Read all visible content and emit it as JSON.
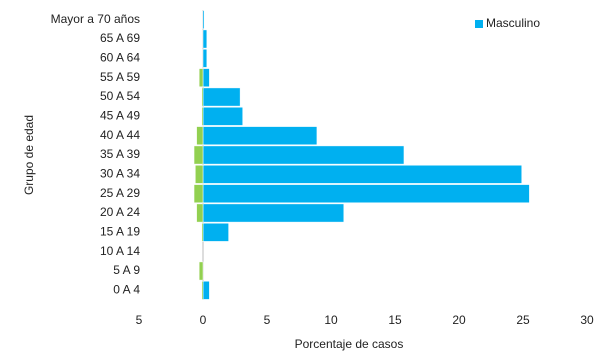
{
  "chart_data": {
    "type": "bar",
    "orientation": "horizontal",
    "ylabel": "Grupo de edad",
    "xlabel": "Porcentaje de casos",
    "categories": [
      "Mayor a 70 años",
      "65 A 69",
      "60 A 64",
      "55 A 59",
      "50 A 54",
      "45 A 49",
      "40 A 44",
      "35 A 39",
      "30 A 34",
      "25 A 29",
      "20 A 24",
      "15 A 19",
      "10 A 14",
      "5 A 9",
      "0 A 4"
    ],
    "series": [
      {
        "name": "Masculino",
        "color": "#00b0f0",
        "values": [
          0.1,
          0.3,
          0.3,
          0.5,
          2.9,
          3.1,
          8.9,
          15.7,
          24.9,
          25.5,
          11,
          2,
          0,
          0,
          0.5
        ]
      },
      {
        "color": "#92d050",
        "values": [
          0,
          0,
          0,
          -0.3,
          -0.1,
          -0.1,
          -0.5,
          -0.7,
          -0.6,
          -0.7,
          -0.5,
          -0.1,
          0,
          -0.3,
          -0.1
        ]
      }
    ],
    "xlim": [
      -5,
      30
    ],
    "xticks": [
      {
        "value": -5,
        "label": "5"
      },
      0,
      5,
      10,
      15,
      20,
      25,
      30
    ],
    "grid": false,
    "legend": "top-right"
  }
}
